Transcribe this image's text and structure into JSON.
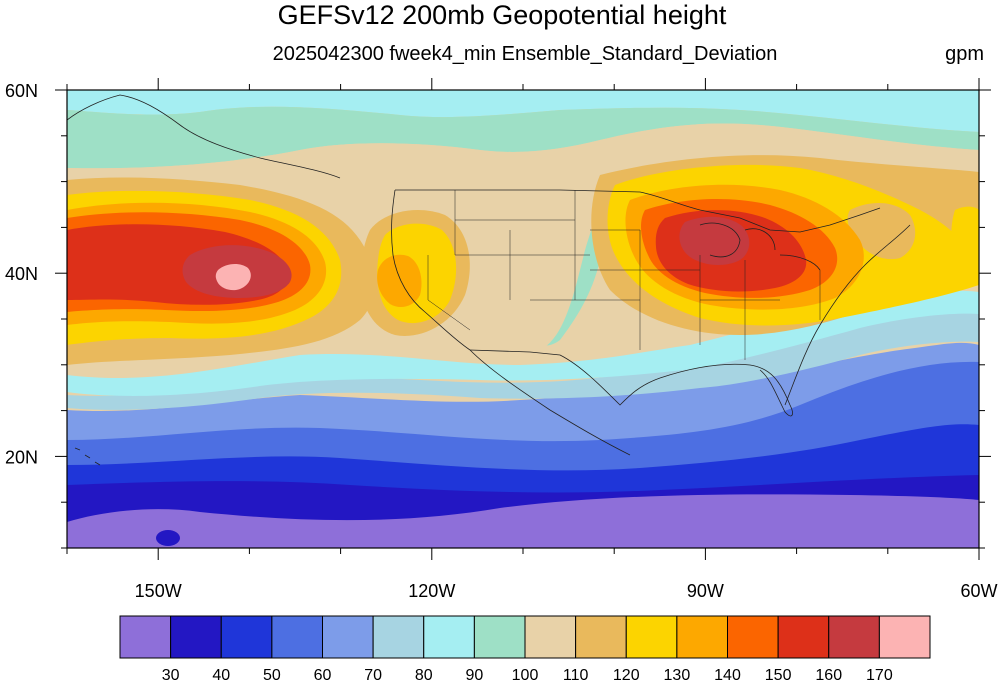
{
  "title": "GEFSv12 200mb Geopotential height",
  "subtitle": "2025042300 fweek4_min Ensemble_Standard_Deviation",
  "units": "gpm",
  "map": {
    "projection": "cylindrical-equidistant",
    "lon_range": [
      -160,
      -60
    ],
    "lat_range": [
      10,
      60
    ],
    "lat_ticks": [
      {
        "lat": 60,
        "label": "60N"
      },
      {
        "lat": 40,
        "label": "40N"
      },
      {
        "lat": 20,
        "label": "20N"
      }
    ],
    "lon_ticks": [
      {
        "lon": -150,
        "label": "150W"
      },
      {
        "lon": -120,
        "label": "120W"
      },
      {
        "lon": -90,
        "label": "90W"
      },
      {
        "lon": -60,
        "label": "60W"
      }
    ]
  },
  "colorbar": {
    "levels": [
      "30",
      "40",
      "50",
      "60",
      "70",
      "80",
      "90",
      "100",
      "110",
      "120",
      "130",
      "140",
      "150",
      "160",
      "170"
    ],
    "colors": [
      "#8e6fd9",
      "#2317c3",
      "#1f36d9",
      "#4d6fe2",
      "#7d9ce9",
      "#a7d4e2",
      "#a5eef2",
      "#9ee0c6",
      "#e8d2a8",
      "#e9b95c",
      "#fcd400",
      "#fda800",
      "#fb6500",
      "#dd3019",
      "#c53a3f",
      "#fcb3b3"
    ]
  },
  "fields": {
    "background": "#fb6500",
    "contours": [
      {
        "level": "below-30",
        "color": "#8e6fd9"
      },
      {
        "level": "30-40",
        "color": "#2317c3"
      },
      {
        "level": "40-50",
        "color": "#1f36d9"
      },
      {
        "level": "50-60",
        "color": "#4d6fe2"
      },
      {
        "level": "60-70",
        "color": "#7d9ce9"
      },
      {
        "level": "70-80",
        "color": "#a7d4e2"
      },
      {
        "level": "80-90",
        "color": "#a5eef2"
      },
      {
        "level": "90-100",
        "color": "#9ee0c6"
      },
      {
        "level": "100-110",
        "color": "#e8d2a8"
      },
      {
        "level": "110-120",
        "color": "#e9b95c"
      },
      {
        "level": "120-130",
        "color": "#fcd400"
      },
      {
        "level": "130-140",
        "color": "#fda800"
      },
      {
        "level": "140-150",
        "color": "#fb6500"
      },
      {
        "level": "150-160",
        "color": "#dd3019"
      },
      {
        "level": "160-170",
        "color": "#c53a3f"
      },
      {
        "level": "above-170",
        "color": "#fcb3b3"
      }
    ]
  }
}
